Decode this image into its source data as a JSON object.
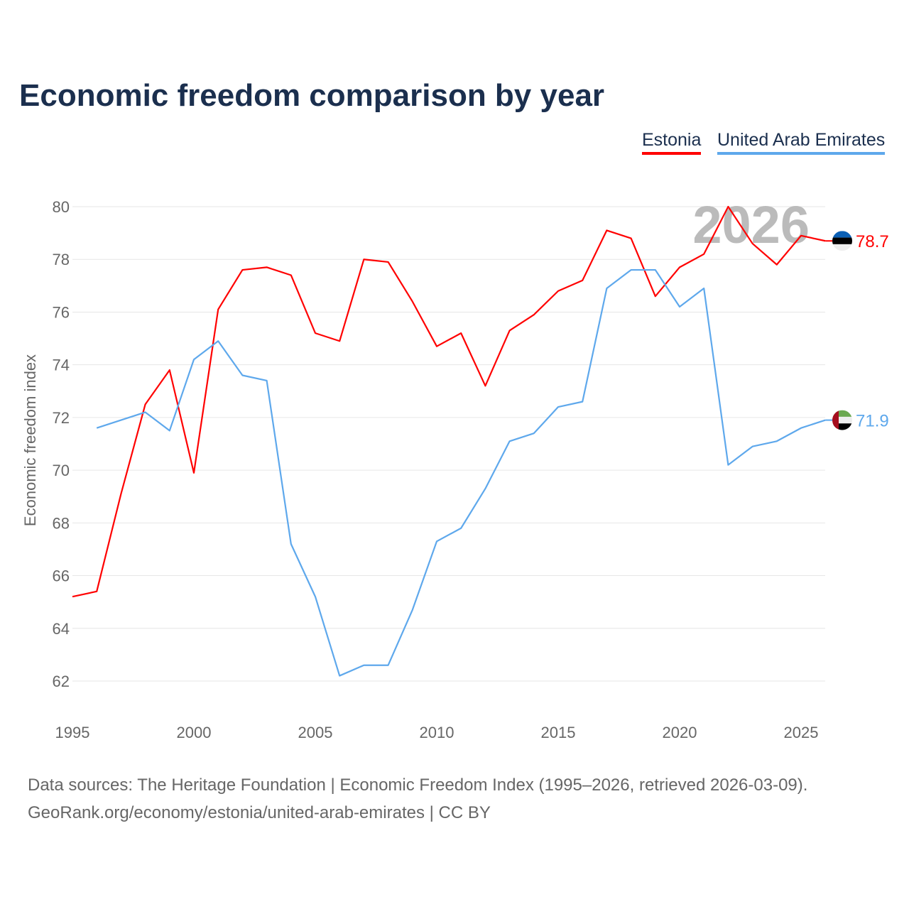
{
  "title": "Economic freedom comparison by year",
  "legend": [
    "Estonia",
    "United Arab Emirates"
  ],
  "source_line1": "Data sources: The Heritage Foundation | Economic Freedom Index (1995–2026, retrieved 2026-03-09).",
  "source_line2": "GeoRank.org/economy/estonia/united-arab-emirates | CC BY",
  "chart_data": {
    "type": "line",
    "title": "Economic freedom comparison by year",
    "xlabel": "",
    "ylabel": "Economic freedom index",
    "xlim": [
      1995,
      2026
    ],
    "ylim": [
      61,
      81
    ],
    "x_ticks": [
      1995,
      2000,
      2005,
      2010,
      2015,
      2020,
      2025
    ],
    "y_ticks": [
      62,
      64,
      66,
      68,
      70,
      72,
      74,
      76,
      78,
      80
    ],
    "grid": true,
    "legend_placement": "top-right",
    "watermark_year": "2026",
    "series": [
      {
        "name": "Estonia",
        "color": "#ff0000",
        "end_label": "78.7",
        "x": [
          1995,
          1996,
          1997,
          1998,
          1999,
          2000,
          2001,
          2002,
          2003,
          2004,
          2005,
          2006,
          2007,
          2008,
          2009,
          2010,
          2011,
          2012,
          2013,
          2014,
          2015,
          2016,
          2017,
          2018,
          2019,
          2020,
          2021,
          2022,
          2023,
          2024,
          2025,
          2026
        ],
        "values": [
          65.2,
          65.4,
          69.1,
          72.5,
          73.8,
          69.9,
          76.1,
          77.6,
          77.7,
          77.4,
          75.2,
          74.9,
          78.0,
          77.9,
          76.4,
          74.7,
          75.2,
          73.2,
          75.3,
          75.9,
          76.8,
          77.2,
          79.1,
          78.8,
          76.6,
          77.7,
          78.2,
          80.0,
          78.6,
          77.8,
          78.9,
          78.7
        ]
      },
      {
        "name": "United Arab Emirates",
        "color": "#5ea8ec",
        "end_label": "71.9",
        "x": [
          1996,
          1997,
          1998,
          1999,
          2000,
          2001,
          2002,
          2003,
          2004,
          2005,
          2006,
          2007,
          2008,
          2009,
          2010,
          2011,
          2012,
          2013,
          2014,
          2015,
          2016,
          2017,
          2018,
          2019,
          2020,
          2021,
          2022,
          2023,
          2024,
          2025,
          2026
        ],
        "values": [
          71.6,
          71.9,
          72.2,
          71.5,
          74.2,
          74.9,
          73.6,
          73.4,
          67.2,
          65.2,
          62.2,
          62.6,
          62.6,
          64.7,
          67.3,
          67.8,
          69.3,
          71.1,
          71.4,
          72.4,
          72.6,
          76.9,
          77.6,
          77.6,
          76.2,
          76.9,
          70.2,
          70.9,
          71.1,
          71.6,
          71.9
        ]
      }
    ]
  }
}
